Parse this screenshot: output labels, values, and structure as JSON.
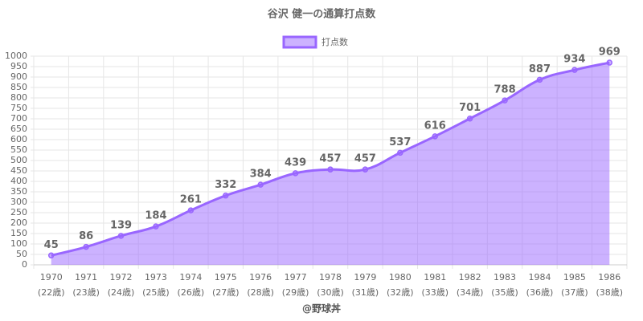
{
  "chart_data": {
    "type": "area",
    "title": "谷沢 健一の通算打点数",
    "categories": [
      [
        "1970",
        "(22歳)"
      ],
      [
        "1971",
        "(23歳)"
      ],
      [
        "1972",
        "(24歳)"
      ],
      [
        "1973",
        "(25歳)"
      ],
      [
        "1974",
        "(26歳)"
      ],
      [
        "1975",
        "(27歳)"
      ],
      [
        "1976",
        "(28歳)"
      ],
      [
        "1977",
        "(29歳)"
      ],
      [
        "1978",
        "(30歳)"
      ],
      [
        "1979",
        "(31歳)"
      ],
      [
        "1980",
        "(32歳)"
      ],
      [
        "1981",
        "(33歳)"
      ],
      [
        "1982",
        "(34歳)"
      ],
      [
        "1983",
        "(35歳)"
      ],
      [
        "1984",
        "(36歳)"
      ],
      [
        "1985",
        "(37歳)"
      ],
      [
        "1986",
        "(38歳)"
      ]
    ],
    "series": [
      {
        "name": "打点数",
        "color": "#9966ff",
        "fill": "rgba(153,102,255,0.5)",
        "values": [
          45,
          86,
          139,
          184,
          261,
          332,
          384,
          439,
          457,
          457,
          537,
          616,
          701,
          788,
          887,
          934,
          969
        ]
      }
    ],
    "ylim": [
      0,
      1000
    ],
    "yticks": [
      0,
      50,
      100,
      150,
      200,
      250,
      300,
      350,
      400,
      450,
      500,
      550,
      600,
      650,
      700,
      750,
      800,
      850,
      900,
      950,
      1000
    ],
    "grid": true,
    "legend": "top",
    "footer": "@野球丼"
  }
}
